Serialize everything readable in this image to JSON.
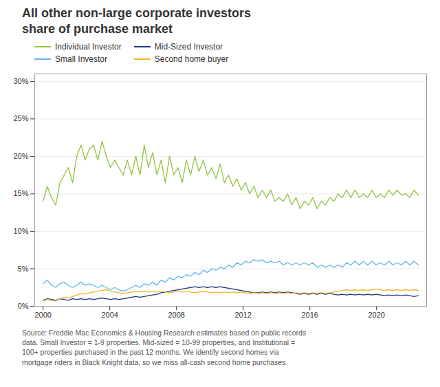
{
  "chart_data": {
    "type": "line",
    "title": "All other non-large corporate investors\nshare of purchase market",
    "caption": "Source: Freddie Mac Economics & Housing Research estimates based on public records\ndata. Small Investor = 1-9 properties, Mid-sized = 10-99 properties, and Institutional =\n100+ properties purchased in the past 12 months. We identify second homes via\nmortgage riders in Black Knight data, so we miss all-cash second home purchases.",
    "x": [
      2000,
      2000.2528,
      2000.5056,
      2000.7584,
      2001.0112,
      2001.264,
      2001.5169,
      2001.7697,
      2002.0225,
      2002.2753,
      2002.5281,
      2002.7809,
      2003.0337,
      2003.2865,
      2003.5393,
      2003.7921,
      2004.0449,
      2004.2978,
      2004.5506,
      2004.8034,
      2005.0562,
      2005.309,
      2005.5618,
      2005.8146,
      2006.0674,
      2006.3202,
      2006.573,
      2006.8258,
      2007.0787,
      2007.3315,
      2007.5843,
      2007.8371,
      2008.0899,
      2008.3427,
      2008.5955,
      2008.8483,
      2009.1011,
      2009.3539,
      2009.6067,
      2009.8596,
      2010.1124,
      2010.3652,
      2010.618,
      2010.8708,
      2011.1236,
      2011.3764,
      2011.6292,
      2011.882,
      2012.1348,
      2012.3876,
      2012.6404,
      2012.8933,
      2013.1461,
      2013.3989,
      2013.6517,
      2013.9045,
      2014.1573,
      2014.4101,
      2014.6629,
      2014.9157,
      2015.1685,
      2015.4213,
      2015.6742,
      2015.927,
      2016.1798,
      2016.4326,
      2016.6854,
      2016.9382,
      2017.191,
      2017.4438,
      2017.6966,
      2017.9494,
      2018.2022,
      2018.4551,
      2018.7079,
      2018.9607,
      2019.2135,
      2019.4663,
      2019.7191,
      2019.9719,
      2020.2247,
      2020.4775,
      2020.7303,
      2020.9831,
      2021.236,
      2021.4888,
      2021.7416,
      2021.9944,
      2022.2472,
      2022.5
    ],
    "xlim": [
      1999.5,
      2023.0
    ],
    "xticks": [
      2000,
      2004,
      2008,
      2012,
      2016,
      2020
    ],
    "ylim": [
      0,
      0.31
    ],
    "yticks": [
      {
        "value": 0,
        "label": "0%"
      },
      {
        "value": 0.05,
        "label": "5%"
      },
      {
        "value": 0.1,
        "label": "10%"
      },
      {
        "value": 0.15,
        "label": "15%"
      },
      {
        "value": 0.2,
        "label": "20%"
      },
      {
        "value": 0.25,
        "label": "25%"
      },
      {
        "value": 0.3,
        "label": "30%"
      }
    ],
    "grid": true,
    "legend": "upper left",
    "series": [
      {
        "name": "Individual Investor",
        "color": "#8dc63f",
        "values": [
          0.14,
          0.16,
          0.145,
          0.135,
          0.165,
          0.175,
          0.185,
          0.165,
          0.2,
          0.215,
          0.195,
          0.21,
          0.215,
          0.195,
          0.22,
          0.2,
          0.185,
          0.195,
          0.185,
          0.175,
          0.195,
          0.175,
          0.2,
          0.175,
          0.215,
          0.185,
          0.205,
          0.175,
          0.195,
          0.165,
          0.2,
          0.175,
          0.185,
          0.165,
          0.195,
          0.175,
          0.2,
          0.18,
          0.195,
          0.175,
          0.185,
          0.17,
          0.19,
          0.165,
          0.175,
          0.16,
          0.17,
          0.155,
          0.165,
          0.15,
          0.16,
          0.145,
          0.155,
          0.145,
          0.155,
          0.14,
          0.145,
          0.14,
          0.15,
          0.135,
          0.145,
          0.13,
          0.14,
          0.135,
          0.145,
          0.13,
          0.14,
          0.135,
          0.145,
          0.14,
          0.15,
          0.145,
          0.155,
          0.145,
          0.155,
          0.145,
          0.15,
          0.145,
          0.155,
          0.145,
          0.15,
          0.145,
          0.155,
          0.148,
          0.155,
          0.148,
          0.15,
          0.145,
          0.155,
          0.148
        ]
      },
      {
        "name": "Mid-Sized Investor",
        "color": "#1f3a7d",
        "values": [
          0.008,
          0.01,
          0.009,
          0.008,
          0.01,
          0.009,
          0.008,
          0.01,
          0.009,
          0.01,
          0.009,
          0.01,
          0.009,
          0.01,
          0.011,
          0.01,
          0.009,
          0.01,
          0.009,
          0.01,
          0.011,
          0.012,
          0.013,
          0.012,
          0.013,
          0.014,
          0.015,
          0.016,
          0.018,
          0.019,
          0.02,
          0.021,
          0.022,
          0.023,
          0.024,
          0.025,
          0.026,
          0.025,
          0.026,
          0.025,
          0.026,
          0.025,
          0.026,
          0.025,
          0.024,
          0.023,
          0.022,
          0.021,
          0.02,
          0.019,
          0.018,
          0.018,
          0.019,
          0.018,
          0.019,
          0.018,
          0.019,
          0.018,
          0.019,
          0.018,
          0.017,
          0.016,
          0.017,
          0.016,
          0.017,
          0.016,
          0.017,
          0.016,
          0.017,
          0.016,
          0.015,
          0.016,
          0.015,
          0.016,
          0.015,
          0.016,
          0.015,
          0.016,
          0.015,
          0.016,
          0.015,
          0.014,
          0.015,
          0.014,
          0.015,
          0.014,
          0.015,
          0.014,
          0.013,
          0.014
        ]
      },
      {
        "name": "Small Investor",
        "color": "#5bb8e8",
        "values": [
          0.03,
          0.035,
          0.028,
          0.025,
          0.03,
          0.032,
          0.028,
          0.025,
          0.028,
          0.032,
          0.028,
          0.03,
          0.028,
          0.025,
          0.028,
          0.025,
          0.022,
          0.025,
          0.022,
          0.02,
          0.022,
          0.025,
          0.028,
          0.025,
          0.03,
          0.028,
          0.032,
          0.028,
          0.035,
          0.032,
          0.038,
          0.035,
          0.04,
          0.038,
          0.042,
          0.04,
          0.045,
          0.042,
          0.048,
          0.045,
          0.05,
          0.048,
          0.052,
          0.05,
          0.055,
          0.052,
          0.058,
          0.055,
          0.06,
          0.058,
          0.062,
          0.06,
          0.062,
          0.058,
          0.06,
          0.058,
          0.06,
          0.055,
          0.058,
          0.055,
          0.058,
          0.055,
          0.058,
          0.055,
          0.058,
          0.052,
          0.055,
          0.052,
          0.055,
          0.052,
          0.055,
          0.052,
          0.058,
          0.055,
          0.06,
          0.055,
          0.06,
          0.055,
          0.06,
          0.055,
          0.058,
          0.055,
          0.06,
          0.055,
          0.058,
          0.055,
          0.06,
          0.055,
          0.06,
          0.055
        ]
      },
      {
        "name": "Second home buyer",
        "color": "#f0b429",
        "values": [
          0.007,
          0.009,
          0.008,
          0.007,
          0.01,
          0.012,
          0.011,
          0.013,
          0.015,
          0.017,
          0.016,
          0.018,
          0.019,
          0.02,
          0.021,
          0.022,
          0.02,
          0.019,
          0.018,
          0.017,
          0.018,
          0.019,
          0.02,
          0.019,
          0.02,
          0.019,
          0.02,
          0.019,
          0.02,
          0.019,
          0.018,
          0.019,
          0.02,
          0.019,
          0.02,
          0.019,
          0.018,
          0.019,
          0.02,
          0.019,
          0.018,
          0.019,
          0.018,
          0.019,
          0.018,
          0.019,
          0.018,
          0.019,
          0.018,
          0.017,
          0.018,
          0.017,
          0.018,
          0.017,
          0.018,
          0.017,
          0.018,
          0.017,
          0.018,
          0.017,
          0.018,
          0.017,
          0.018,
          0.017,
          0.018,
          0.017,
          0.018,
          0.017,
          0.018,
          0.019,
          0.02,
          0.021,
          0.022,
          0.021,
          0.022,
          0.021,
          0.022,
          0.021,
          0.022,
          0.023,
          0.022,
          0.021,
          0.022,
          0.021,
          0.022,
          0.021,
          0.022,
          0.021,
          0.022,
          0.021
        ]
      }
    ]
  }
}
